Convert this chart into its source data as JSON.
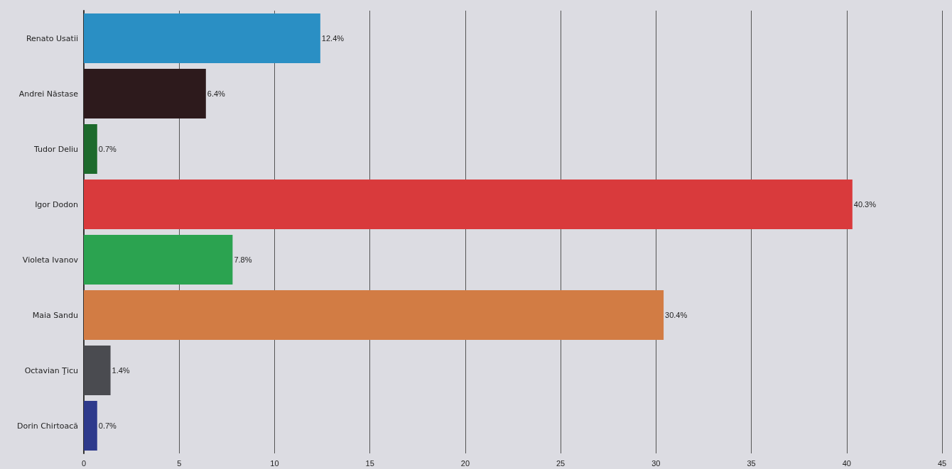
{
  "chart_data": {
    "type": "bar",
    "orientation": "horizontal",
    "categories": [
      "Renato Usatii",
      "Andrei Năstase",
      "Tudor Deliu",
      "Igor Dodon",
      "Violeta Ivanov",
      "Maia Sandu",
      "Octavian Ţicu",
      "Dorin Chirtoacă"
    ],
    "values": [
      12.4,
      6.4,
      0.7,
      40.3,
      7.8,
      30.4,
      1.4,
      0.7
    ],
    "colors": [
      "#2a8fc4",
      "#2d1a1c",
      "#1d6a2c",
      "#d93a3c",
      "#2ba350",
      "#d27c44",
      "#4a4b50",
      "#2e3a8c"
    ],
    "value_labels": [
      "12.4%",
      "6.4%",
      "0.7%",
      "40.3%",
      "7.8%",
      "30.4%",
      "1.4%",
      "0.7%"
    ],
    "xlim": [
      0,
      45
    ],
    "xticks": [
      0,
      5,
      10,
      15,
      20,
      25,
      30,
      35,
      40,
      45
    ],
    "grid": "x"
  }
}
